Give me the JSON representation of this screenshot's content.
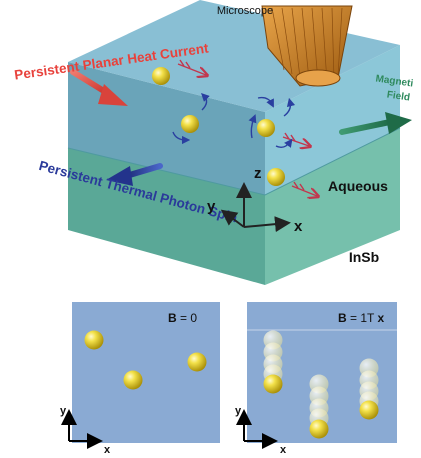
{
  "top": {
    "microscope_label": "Microscope",
    "heat_current_label": "Persistent Planar Heat Current",
    "photon_spin_label": "Persistent Thermal Photon Spin",
    "magnetic_field_label_line1": "Magneti",
    "magnetic_field_label_line2": "Field",
    "aqueous_label": "Aqueous",
    "substrate_label": "InSb",
    "axis_z": "z",
    "axis_y": "y",
    "axis_x": "x"
  },
  "panel_left": {
    "field_prefix": "B",
    "field_value": " = 0",
    "axis_y": "y",
    "axis_x": "x"
  },
  "panel_right": {
    "field_prefix": "B",
    "field_value": " = 1T ",
    "field_dir": "x",
    "axis_y": "y",
    "axis_x": "x"
  },
  "colors": {
    "heat_red": "#e8423c",
    "spin_blue": "#2a3a9a",
    "field_green": "#2f7d5a",
    "microscope_orange": "#c97a1e",
    "aqueous": "#8fc6d6",
    "insb": "#6cb7a6",
    "panel_bg": "#8aaad3",
    "particle_gold": "#d6c21e"
  }
}
